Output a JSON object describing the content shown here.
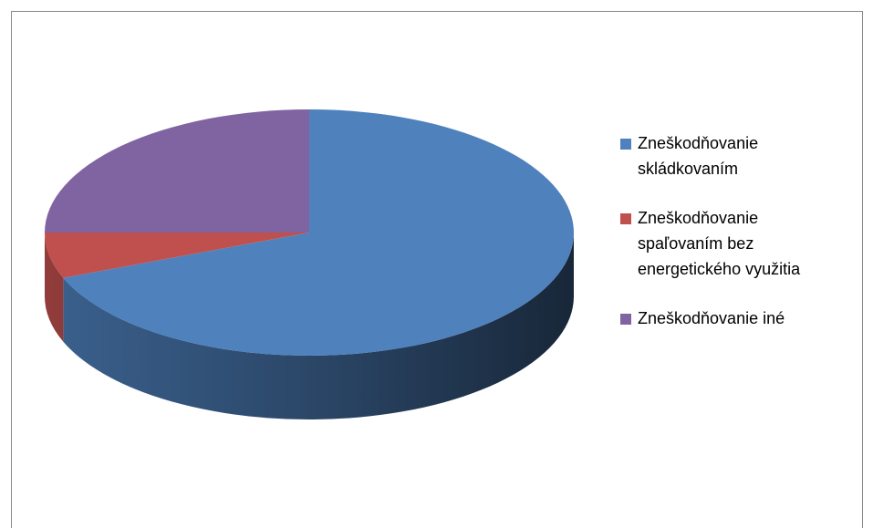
{
  "chart_data": {
    "type": "pie",
    "three_d": true,
    "categories": [
      "Zneškodňovanie skládkovaním",
      "Zneškodňovanie spaľovaním bez energetického využitia",
      "Zneškodňovanie iné"
    ],
    "values": [
      69,
      6,
      25
    ],
    "colors": [
      "#4f81bd",
      "#c0504d",
      "#8064a2"
    ],
    "legend": "right"
  }
}
